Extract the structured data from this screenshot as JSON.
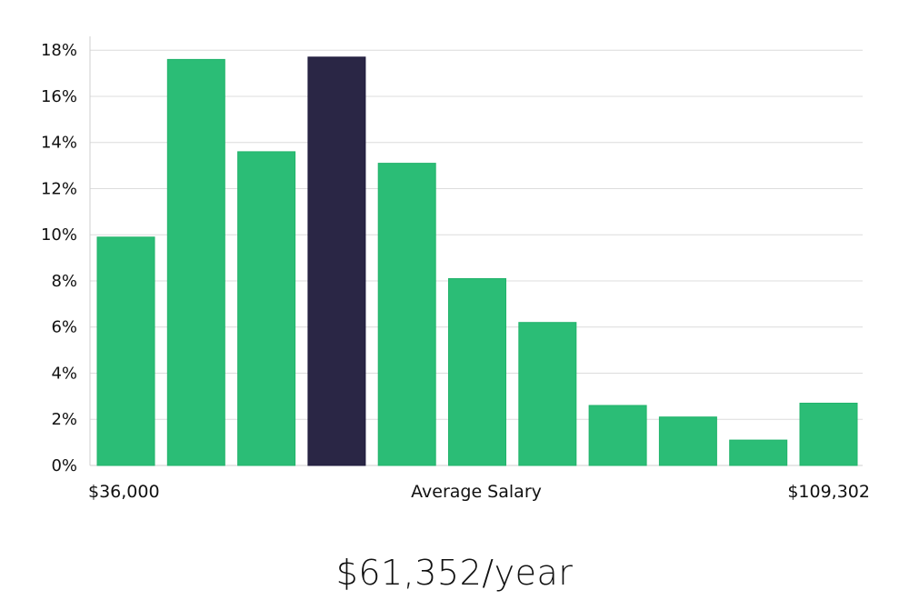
{
  "chart_data": {
    "type": "bar",
    "values": [
      9.9,
      17.6,
      13.6,
      17.7,
      13.1,
      8.1,
      6.2,
      2.6,
      2.1,
      1.1,
      2.7
    ],
    "highlight_index": 3,
    "y_ticks": [
      "0%",
      "2%",
      "4%",
      "6%",
      "8%",
      "10%",
      "12%",
      "14%",
      "16%",
      "18%"
    ],
    "ylim": [
      0,
      18.6
    ],
    "grid": true,
    "x_min_label": "$36,000",
    "x_center_label": "Average Salary",
    "x_max_label": "$109,302",
    "colors": {
      "bar": "#2bbd76",
      "highlight": "#2a2645",
      "grid": "#dcdcdc",
      "axis": "#cfcfcf"
    }
  },
  "salary_text": "$61,352/year"
}
